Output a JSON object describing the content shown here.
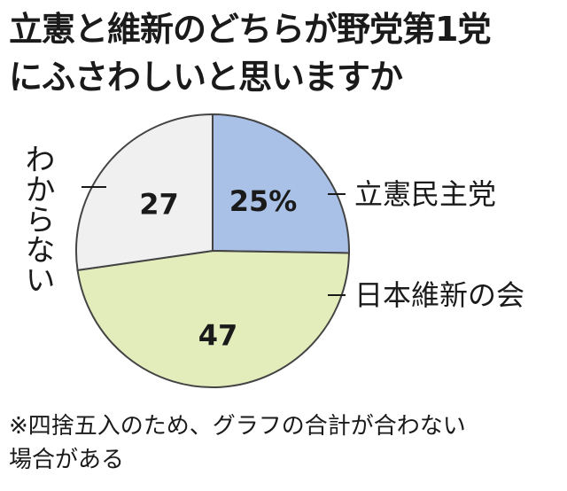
{
  "title_line1": "立憲と維新のどちらが野党第1党",
  "title_line2": "にふさわしいと思いますか",
  "note_line1": "※四捨五入のため、グラフの合計が合わない",
  "note_line2": "場合がある",
  "chart_data": {
    "type": "pie",
    "title": "立憲と維新のどちらが野党第1党にふさわしいと思いますか",
    "unit": "%",
    "slices": [
      {
        "label": "立憲民主党",
        "value": 25,
        "value_text": "25%",
        "color": "#a9c1e6"
      },
      {
        "label": "日本維新の会",
        "value": 47,
        "value_text": "47",
        "color": "#e2edbb"
      },
      {
        "label": "わからない",
        "value": 27,
        "value_text": "27",
        "color": "#f0f0f0"
      }
    ]
  }
}
